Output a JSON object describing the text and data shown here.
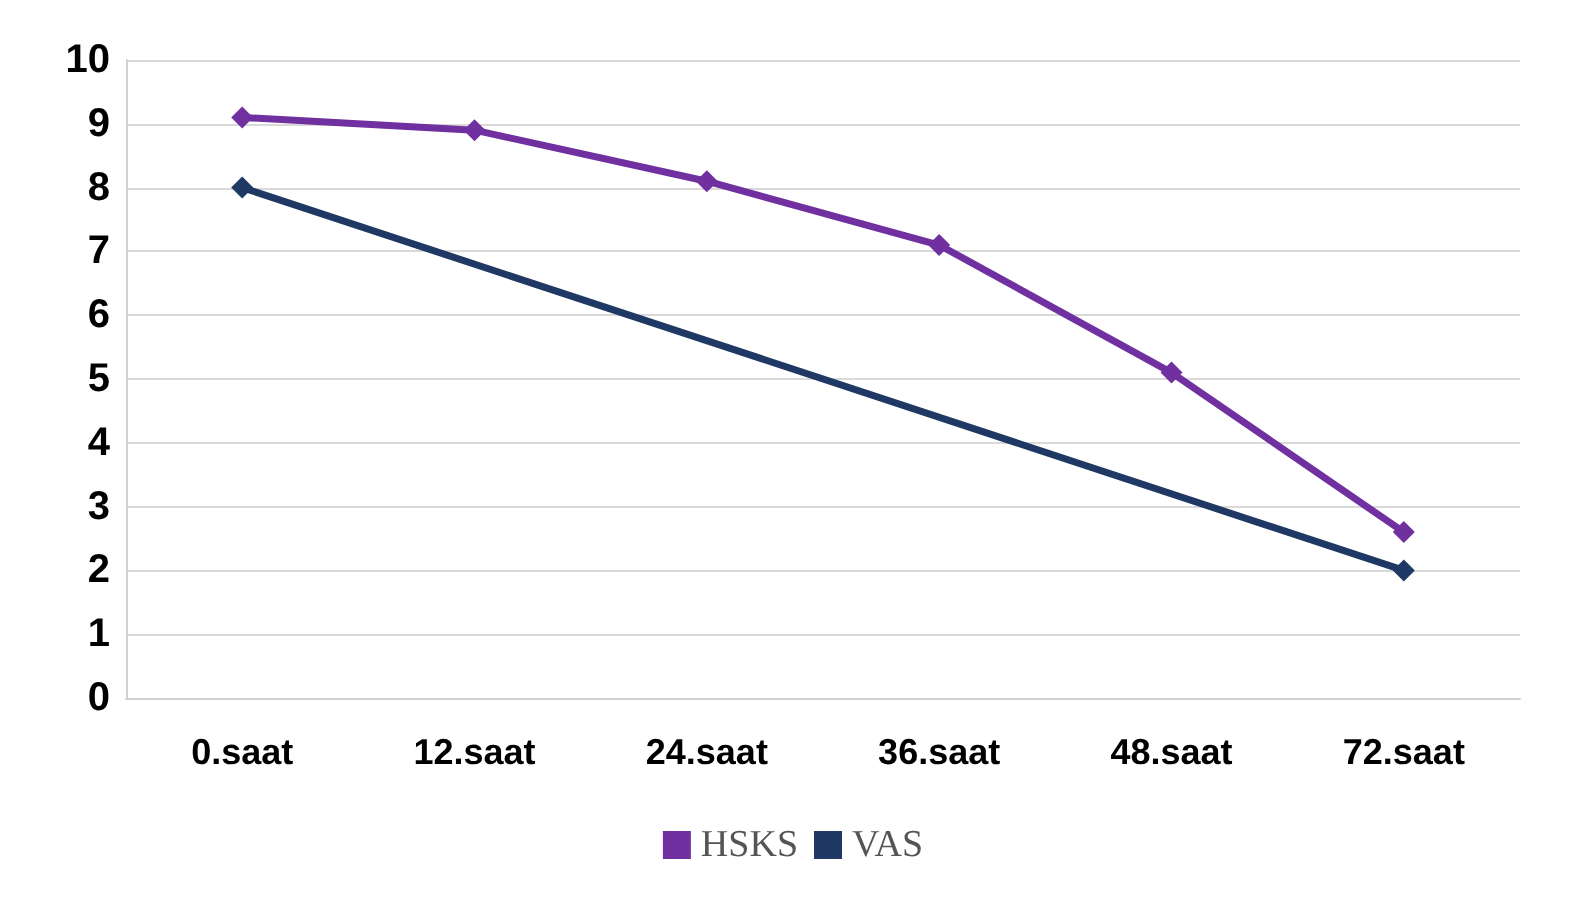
{
  "chart_data": {
    "type": "line",
    "categories": [
      "0.saat",
      "12.saat",
      "24.saat",
      "36.saat",
      "48.saat",
      "72.saat"
    ],
    "series": [
      {
        "name": "HSKS",
        "color": "#7030a0",
        "values": [
          9.1,
          8.9,
          8.1,
          7.1,
          5.1,
          2.6
        ]
      },
      {
        "name": "VAS",
        "color": "#1f3864",
        "values": [
          8,
          null,
          null,
          null,
          null,
          2
        ]
      }
    ],
    "ylim": [
      0,
      10
    ],
    "yticks": [
      0,
      1,
      2,
      3,
      4,
      5,
      6,
      7,
      8,
      9,
      10
    ],
    "grid": "y",
    "legend": "bottom",
    "marker": "diamond",
    "line_style": "solid"
  }
}
